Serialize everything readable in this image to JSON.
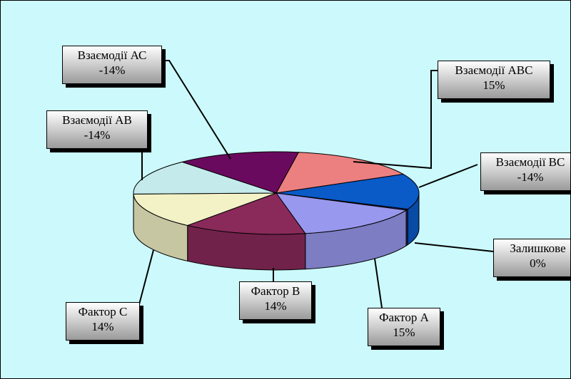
{
  "colors": {
    "background": "#ccfafc",
    "label_gradient_light": "#ffffff",
    "label_gradient_dark": "#9a9a9a"
  },
  "chart_data": {
    "type": "pie",
    "style": "3d-exploded-labels",
    "title": "",
    "slices": [
      {
        "label": "Взаємодії АВС",
        "percent_label": "15%",
        "value": 15,
        "color": "#ec8080"
      },
      {
        "label": "Взаємодії ВС",
        "percent_label": "-14%",
        "value": 14,
        "color": "#0a5ac8"
      },
      {
        "label": "Залишкове",
        "percent_label": "0%",
        "value": 0,
        "color": "#303090"
      },
      {
        "label": "Фактор А",
        "percent_label": "15%",
        "value": 15,
        "color": "#9898ee"
      },
      {
        "label": "Фактор В",
        "percent_label": "14%",
        "value": 14,
        "color": "#8a2a5a"
      },
      {
        "label": "Фактор С",
        "percent_label": "14%",
        "value": 14,
        "color": "#f2f2c6"
      },
      {
        "label": "Взаємодії АВ",
        "percent_label": "-14%",
        "value": 14,
        "color": "#c4eaec"
      },
      {
        "label": "Взаємодії АС",
        "percent_label": "-14%",
        "value": 14,
        "color": "#6a0a5e"
      }
    ],
    "legend": "none"
  }
}
